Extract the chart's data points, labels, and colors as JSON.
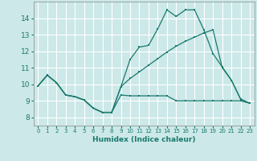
{
  "xlabel": "Humidex (Indice chaleur)",
  "background_color": "#cce8e8",
  "grid_color": "#b0d4d4",
  "line_color": "#1a7a6e",
  "xlim": [
    -0.5,
    23.5
  ],
  "ylim": [
    7.5,
    15.0
  ],
  "yticks": [
    8,
    9,
    10,
    11,
    12,
    13,
    14
  ],
  "xticks": [
    0,
    1,
    2,
    3,
    4,
    5,
    6,
    7,
    8,
    9,
    10,
    11,
    12,
    13,
    14,
    15,
    16,
    17,
    18,
    19,
    20,
    21,
    22,
    23
  ],
  "line1_x": [
    0,
    1,
    2,
    3,
    4,
    5,
    6,
    7,
    8,
    9,
    10,
    11,
    12,
    13,
    14,
    15,
    16,
    17,
    18,
    19,
    20,
    21,
    22,
    23
  ],
  "line1_y": [
    9.9,
    10.55,
    10.1,
    9.35,
    9.25,
    9.05,
    8.55,
    8.3,
    8.3,
    9.35,
    9.3,
    9.3,
    9.3,
    9.3,
    9.3,
    9.0,
    9.0,
    9.0,
    9.0,
    9.0,
    9.0,
    9.0,
    9.0,
    8.85
  ],
  "line2_x": [
    0,
    1,
    2,
    3,
    4,
    5,
    6,
    7,
    8,
    9,
    10,
    11,
    12,
    13,
    14,
    15,
    16,
    17,
    18,
    19,
    20,
    21,
    22,
    23
  ],
  "line2_y": [
    9.9,
    10.55,
    10.1,
    9.35,
    9.25,
    9.05,
    8.55,
    8.3,
    8.3,
    9.85,
    11.5,
    12.25,
    12.35,
    13.35,
    14.5,
    14.1,
    14.5,
    14.5,
    13.3,
    11.85,
    11.05,
    10.25,
    9.1,
    8.85
  ],
  "line3_x": [
    0,
    1,
    2,
    3,
    4,
    5,
    6,
    7,
    8,
    9,
    10,
    11,
    12,
    13,
    14,
    15,
    16,
    17,
    18,
    19,
    20,
    21,
    22,
    23
  ],
  "line3_y": [
    9.9,
    10.55,
    10.1,
    9.35,
    9.25,
    9.05,
    8.55,
    8.3,
    8.3,
    9.85,
    10.35,
    10.75,
    11.15,
    11.55,
    11.95,
    12.3,
    12.6,
    12.85,
    13.1,
    13.3,
    11.0,
    10.25,
    9.1,
    8.85
  ]
}
